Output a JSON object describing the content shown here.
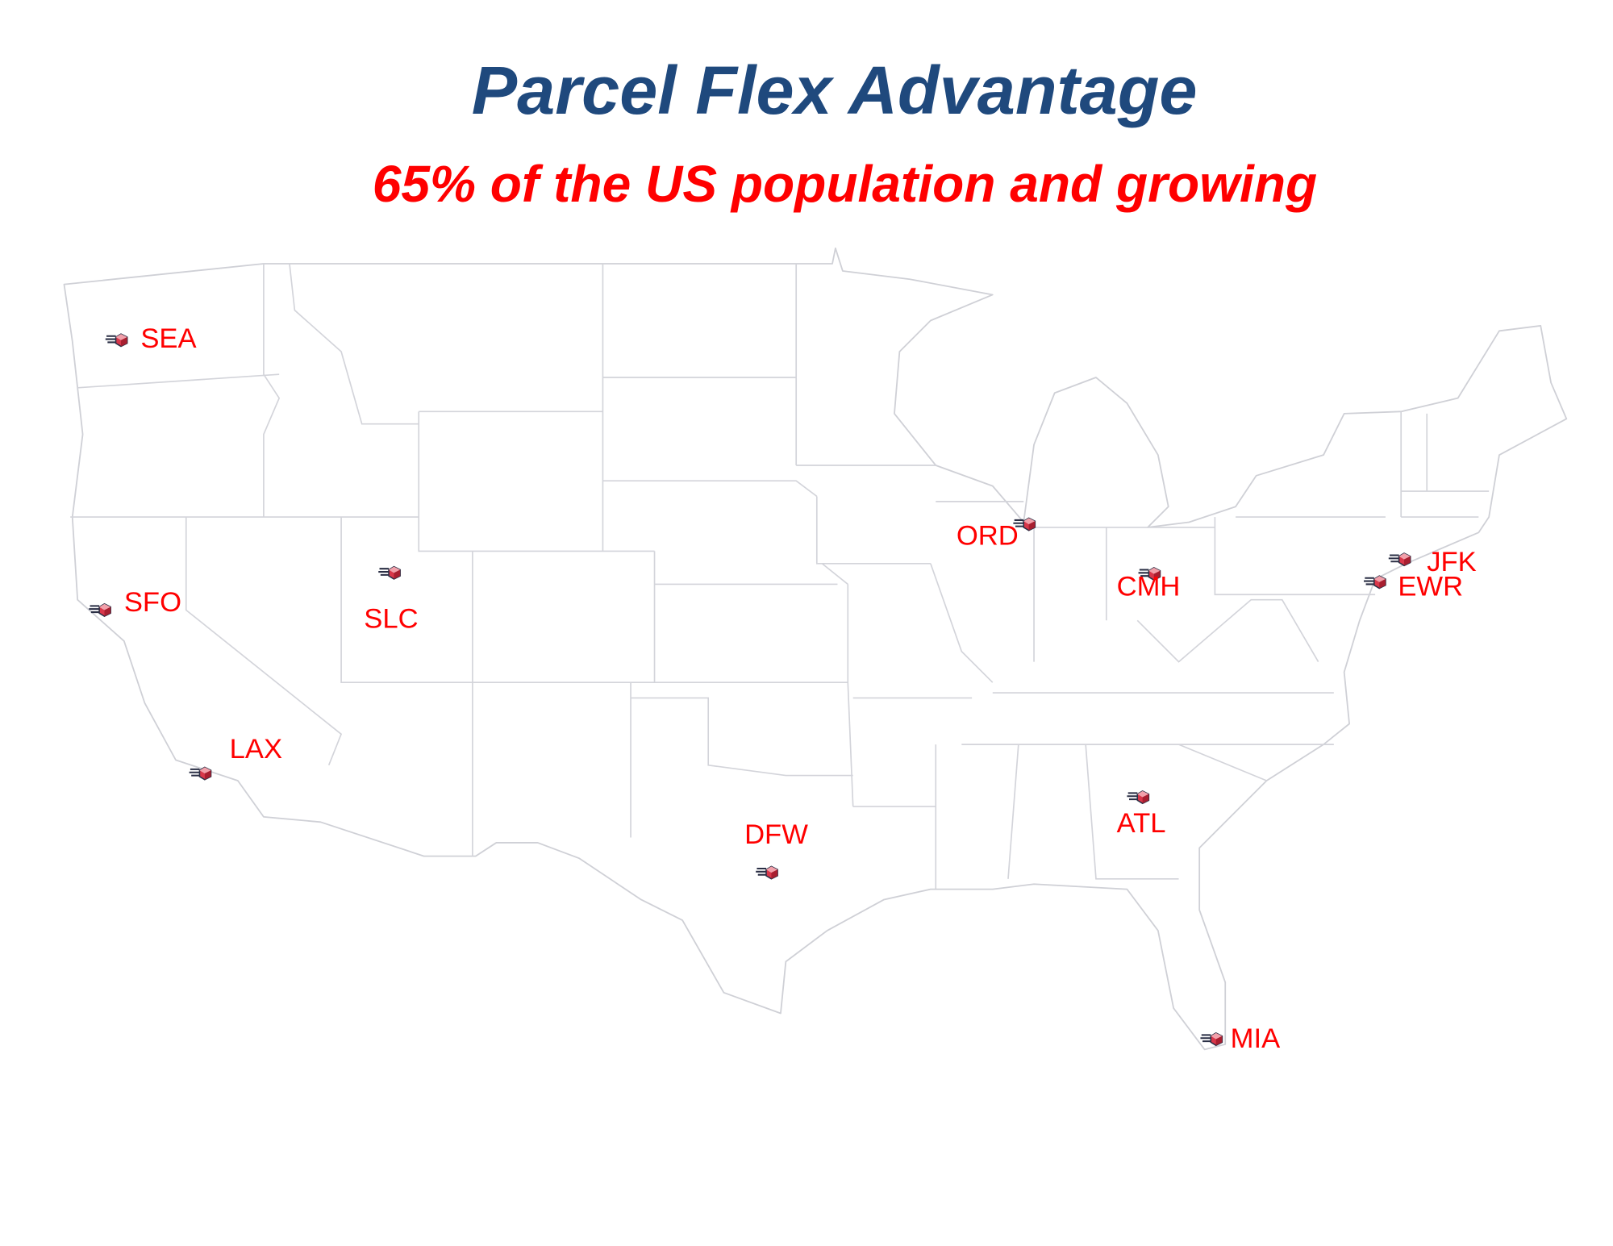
{
  "header": {
    "title": "Parcel Flex Advantage",
    "subtitle": "65% of the US population and growing"
  },
  "colors": {
    "title": "#1f497d",
    "subtitle": "#ff0000",
    "labels": "#ff0000",
    "state_borders": "#cfd0d6"
  },
  "map": {
    "region": "Contiguous United States",
    "marker_icon": "parcel-box-icon",
    "locations": [
      {
        "code": "SEA"
      },
      {
        "code": "SFO"
      },
      {
        "code": "SLC"
      },
      {
        "code": "LAX"
      },
      {
        "code": "DFW"
      },
      {
        "code": "ORD"
      },
      {
        "code": "CMH"
      },
      {
        "code": "ATL"
      },
      {
        "code": "JFK"
      },
      {
        "code": "EWR"
      },
      {
        "code": "MIA"
      }
    ]
  }
}
